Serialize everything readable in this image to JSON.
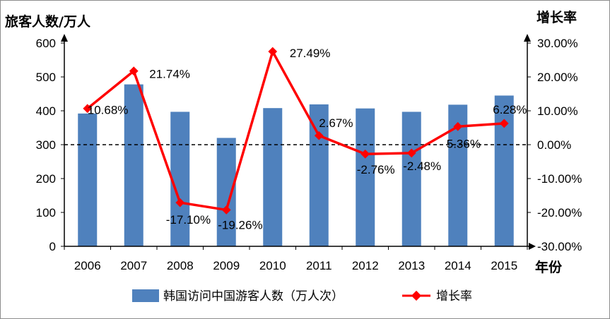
{
  "chart_data": {
    "type": "bar",
    "categories": [
      "2006",
      "2007",
      "2008",
      "2009",
      "2010",
      "2011",
      "2012",
      "2013",
      "2014",
      "2015"
    ],
    "series": [
      {
        "name": "韩国访问中国游客人数（万人次）",
        "type": "bar",
        "axis": "left",
        "color": "#4f81bd",
        "values": [
          392,
          478,
          397,
          320,
          408,
          419,
          407,
          397,
          418,
          445
        ]
      },
      {
        "name": "增长率",
        "type": "line",
        "axis": "right",
        "color": "#ff0000",
        "values": [
          10.68,
          21.74,
          -17.1,
          -19.26,
          27.49,
          2.67,
          -2.76,
          -2.48,
          5.36,
          6.28
        ],
        "labels": [
          "10.68%",
          "21.74%",
          "-17.10%",
          "-19.26%",
          "27.49%",
          "2.67%",
          "-2.76%",
          "-2.48%",
          "5.36%",
          "6.28%"
        ]
      }
    ],
    "y_left": {
      "label": "旅客人数/万人",
      "ylim": [
        0,
        600
      ],
      "ticks": [
        0,
        100,
        200,
        300,
        400,
        500,
        600
      ],
      "tick_labels": [
        "0",
        "100",
        "200",
        "300",
        "400",
        "500",
        "600"
      ]
    },
    "y_right": {
      "label": "增长率",
      "ylim": [
        -30,
        30
      ],
      "ticks": [
        -30,
        -20,
        -10,
        0,
        10,
        20,
        30
      ],
      "tick_labels": [
        "-30.00%",
        "-20.00%",
        "-10.00%",
        "0.00%",
        "10.00%",
        "20.00%",
        "30.00%"
      ]
    },
    "xlabel": "年份",
    "reference_line": {
      "y_right": 0,
      "style": "dashed"
    },
    "grid": false,
    "legend": {
      "position": "bottom"
    }
  }
}
